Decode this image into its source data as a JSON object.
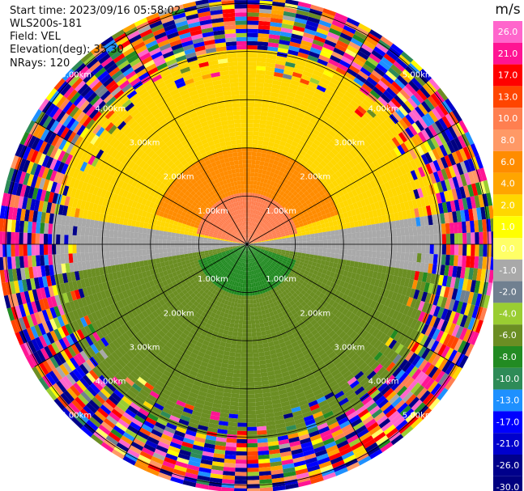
{
  "header": {
    "start_time": "Start time: 2023/09/16 05:58:02",
    "instrument": "WLS200s-181",
    "field": "Field: VEL",
    "elevation": "Elevation(deg): 35.30",
    "nrays": "NRays: 120"
  },
  "chart_data": {
    "type": "heatmap",
    "projection": "polar PPI (plan position indicator)",
    "field": "VEL",
    "units": "m/s",
    "elevation_deg": 35.3,
    "nrays": 120,
    "range_rings": [
      {
        "value": 1.0,
        "label": "1.00km"
      },
      {
        "value": 2.0,
        "label": "2.00km"
      },
      {
        "value": 3.0,
        "label": "3.00km"
      },
      {
        "value": 4.0,
        "label": "4.00km"
      },
      {
        "value": 5.0,
        "label": "5.00km"
      }
    ],
    "spokes_deg": [
      0,
      30,
      60,
      90,
      120,
      150,
      180,
      210,
      240,
      270,
      300,
      330
    ],
    "colorbar": {
      "title": "m/s",
      "ticks": [
        "26.0",
        "21.0",
        "17.0",
        "13.0",
        "10.0",
        "8.0",
        "6.0",
        "4.0",
        "2.0",
        "1.0",
        "0.0",
        "-1.0",
        "-2.0",
        "-4.0",
        "-6.0",
        "-8.0",
        "-10.0",
        "-13.0",
        "-17.0",
        "-21.0",
        "-26.0",
        "-30.0"
      ],
      "colors": [
        "#ff66cc",
        "#ff1493",
        "#ff0000",
        "#ff4500",
        "#ff7f50",
        "#ff9966",
        "#ff8c00",
        "#ffa500",
        "#ffd700",
        "#ffff00",
        "#ffff66",
        "#a9a9a9",
        "#708090",
        "#9acd32",
        "#6b8e23",
        "#228b22",
        "#2e8b57",
        "#1e90ff",
        "#0000ff",
        "#0000cd",
        "#00008b",
        "#000080"
      ]
    },
    "velocity_pattern": {
      "NE_sector_m_s": 2.0,
      "N_near_m_s": 6.0,
      "core_N_m_s": 10.0,
      "E_W_band_m_s": -1.0,
      "S_sector_m_s": -4.0,
      "core_S_m_s": -8.0,
      "noise_beyond_km": 4.0
    }
  }
}
